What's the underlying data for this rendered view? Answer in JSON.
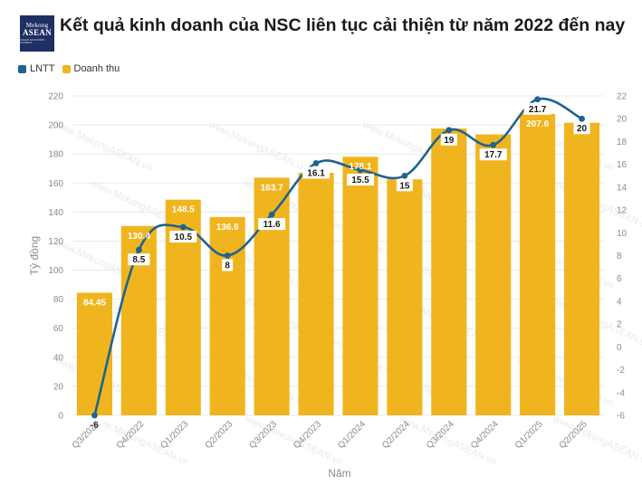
{
  "logo": {
    "line1": "Mekong",
    "line2": "ASEAN",
    "line3": "ASEAN ECONOMIC JOURNAL"
  },
  "title": "Kết quả kinh doanh của NSC liên tục cải thiện từ năm 2022 đến nay",
  "watermark": "www.MekongASEAN.vn",
  "colors": {
    "bar": "#f0b51e",
    "line": "#1f6391",
    "grid": "#e9e9e9",
    "axis_text": "#8a8a8a"
  },
  "chart_data": {
    "type": "bar",
    "title": "Kết quả kinh doanh của NSC liên tục cải thiện từ năm 2022 đến nay",
    "xlabel": "Năm",
    "ylabel": "Tỷ đồng",
    "categories": [
      "Q3/2022",
      "Q4/2022",
      "Q1/2023",
      "Q2/2023",
      "Q3/2023",
      "Q4/2023",
      "Q1/2024",
      "Q2/2024",
      "Q3/2024",
      "Q4/2024",
      "Q1/2025",
      "Q2/2025"
    ],
    "series": [
      {
        "name": "Doanh thu",
        "type": "bar",
        "axis": "left",
        "values": [
          84.45,
          130.4,
          148.5,
          136.6,
          163.7,
          167,
          178.1,
          162.5,
          197.5,
          193.5,
          207.6,
          201.5
        ],
        "labels": [
          "84.45",
          "130.4",
          "148.5",
          "136.6",
          "163.7",
          "",
          "178.1",
          "",
          "",
          "",
          "207.6",
          ""
        ]
      },
      {
        "name": "LNTT",
        "type": "line",
        "axis": "right",
        "values": [
          -6,
          8.5,
          10.5,
          8,
          11.6,
          16.1,
          15.5,
          15,
          19,
          17.7,
          21.7,
          20
        ],
        "labels": [
          "-6",
          "8.5",
          "10.5",
          "8",
          "11.6",
          "16.1",
          "15.5",
          "15",
          "19",
          "17.7",
          "21.7",
          "20"
        ]
      }
    ],
    "ylim": [
      0,
      220
    ],
    "y_ticks": [
      0,
      20,
      40,
      60,
      80,
      100,
      120,
      140,
      160,
      180,
      200,
      220
    ],
    "y2lim": [
      -6,
      22
    ],
    "y2_ticks": [
      -6,
      -4,
      -2,
      0,
      2,
      4,
      6,
      8,
      10,
      12,
      14,
      16,
      18,
      20,
      22
    ],
    "legend": [
      "LNTT",
      "Doanh thu"
    ],
    "legend_position": "top-left",
    "grid": true
  }
}
